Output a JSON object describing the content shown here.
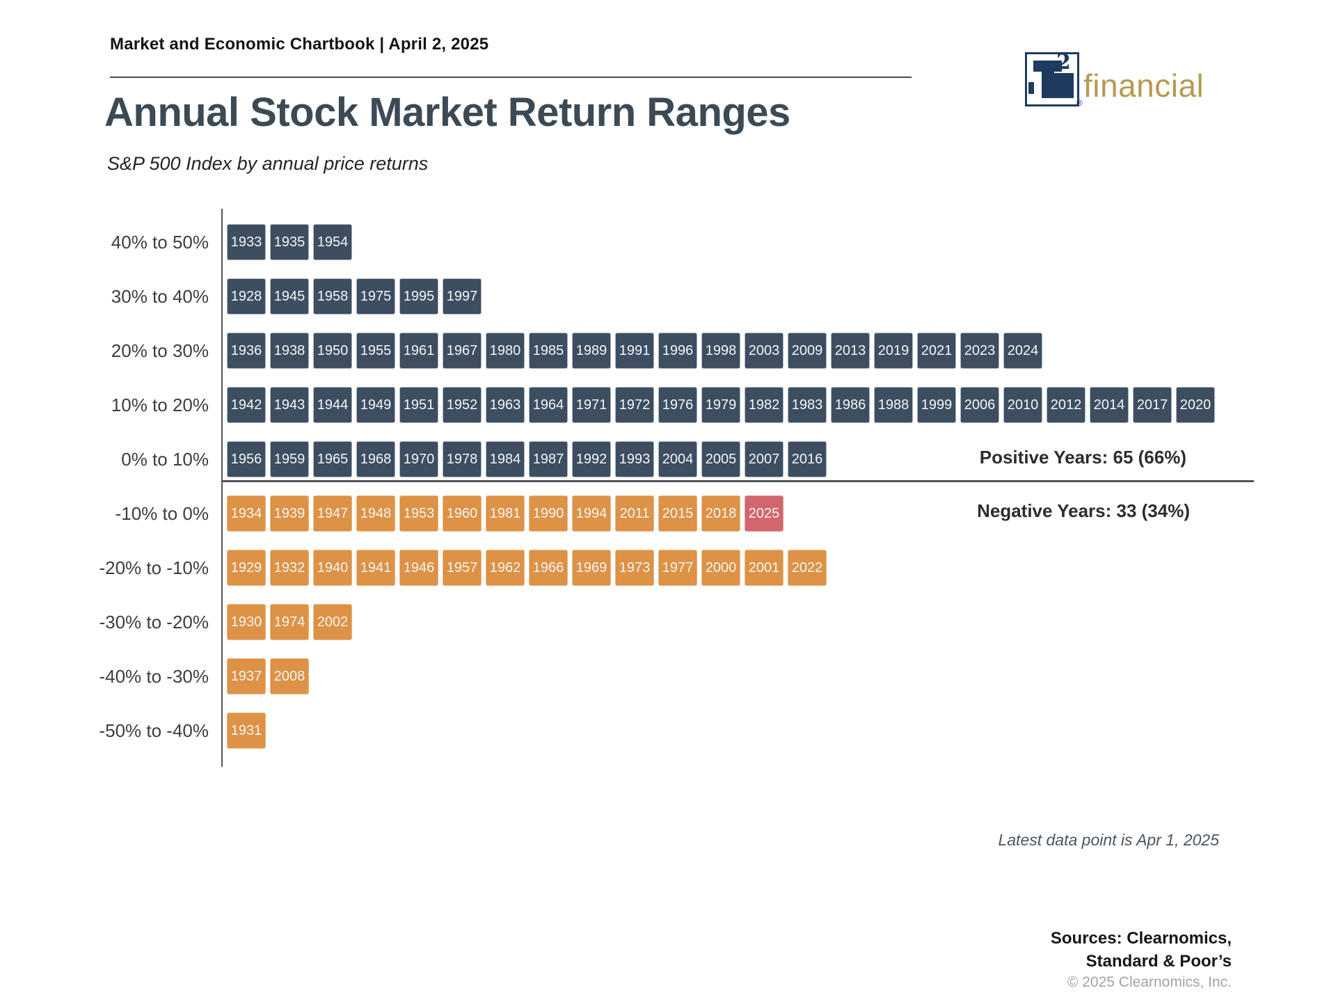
{
  "header": {
    "chartbook": "Market and Economic Chartbook | April 2, 2025",
    "title": "Annual Stock Market Return Ranges",
    "subtitle": "S&P 500 Index by annual price returns"
  },
  "logo": {
    "letter": "T",
    "sup": "2",
    "wordmark": "financial",
    "reg": "®",
    "navy": "#1e3a5f",
    "gold": "#b59a50"
  },
  "chart_data": {
    "type": "bar",
    "title": "Annual Stock Market Return Ranges",
    "subtitle": "S&P 500 Index by annual price returns",
    "categories": [
      "40% to 50%",
      "30% to 40%",
      "20% to 30%",
      "10% to 20%",
      "0% to 10%",
      "-10% to 0%",
      "-20% to -10%",
      "-30% to -20%",
      "-40% to -30%",
      "-50% to -40%"
    ],
    "counts": [
      3,
      6,
      19,
      23,
      14,
      13,
      14,
      3,
      2,
      1
    ],
    "rows": [
      {
        "label": "40% to 50%",
        "type": "positive",
        "years": [
          "1933",
          "1935",
          "1954"
        ]
      },
      {
        "label": "30% to 40%",
        "type": "positive",
        "years": [
          "1928",
          "1945",
          "1958",
          "1975",
          "1995",
          "1997"
        ]
      },
      {
        "label": "20% to 30%",
        "type": "positive",
        "years": [
          "1936",
          "1938",
          "1950",
          "1955",
          "1961",
          "1967",
          "1980",
          "1985",
          "1989",
          "1991",
          "1996",
          "1998",
          "2003",
          "2009",
          "2013",
          "2019",
          "2021",
          "2023",
          "2024"
        ]
      },
      {
        "label": "10% to 20%",
        "type": "positive",
        "years": [
          "1942",
          "1943",
          "1944",
          "1949",
          "1951",
          "1952",
          "1963",
          "1964",
          "1971",
          "1972",
          "1976",
          "1979",
          "1982",
          "1983",
          "1986",
          "1988",
          "1999",
          "2006",
          "2010",
          "2012",
          "2014",
          "2017",
          "2020"
        ]
      },
      {
        "label": "0% to 10%",
        "type": "positive",
        "years": [
          "1956",
          "1959",
          "1965",
          "1968",
          "1970",
          "1978",
          "1984",
          "1987",
          "1992",
          "1993",
          "2004",
          "2005",
          "2007",
          "2016"
        ]
      },
      {
        "label": "-10% to 0%",
        "type": "negative",
        "years": [
          "1934",
          "1939",
          "1947",
          "1948",
          "1953",
          "1960",
          "1981",
          "1990",
          "1994",
          "2011",
          "2015",
          "2018",
          "2025"
        ]
      },
      {
        "label": "-20% to -10%",
        "type": "negative",
        "years": [
          "1929",
          "1932",
          "1940",
          "1941",
          "1946",
          "1957",
          "1962",
          "1966",
          "1969",
          "1973",
          "1977",
          "2000",
          "2001",
          "2022"
        ]
      },
      {
        "label": "-30% to -20%",
        "type": "negative",
        "years": [
          "1930",
          "1974",
          "2002"
        ]
      },
      {
        "label": "-40% to -30%",
        "type": "negative",
        "years": [
          "1937",
          "2008"
        ]
      },
      {
        "label": "-50% to -40%",
        "type": "negative",
        "years": [
          "1931"
        ]
      }
    ],
    "highlight_year": "2025",
    "positive_total": "Positive Years: 65 (66%)",
    "negative_total": "Negative Years: 33 (34%)",
    "colors": {
      "positive": "#3d4e61",
      "negative": "#dd9245",
      "highlight": "#d3666c"
    },
    "legend_position": "none",
    "grid": false
  },
  "annotations": {
    "positive": "Positive Years: 65 (66%)",
    "negative": "Negative Years: 33 (34%)",
    "latest": "Latest data point is Apr 1, 2025"
  },
  "footer": {
    "sources_line1": "Sources: Clearnomics,",
    "sources_line2": "Standard & Poor’s",
    "copyright": "© 2025 Clearnomics, Inc."
  }
}
